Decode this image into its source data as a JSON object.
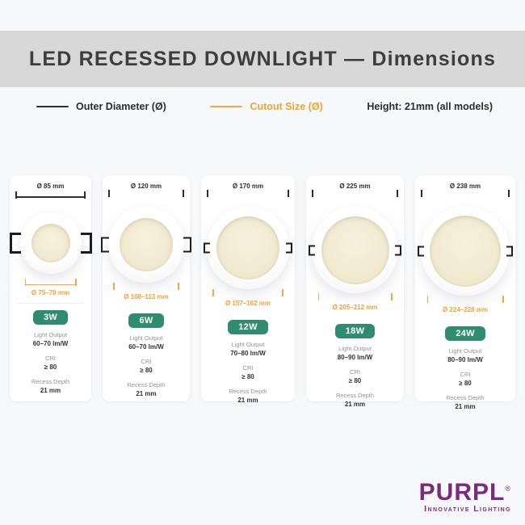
{
  "header": {
    "title": "LED RECESSED DOWNLIGHT — Dimensions"
  },
  "legend": {
    "outer_label": "Outer Diameter (Ø)",
    "cutout_label": "Cutout Size (Ø)",
    "height_note": "Height: 21mm (all models)"
  },
  "labels": {
    "light_output": "Light Output",
    "cri": "CRI",
    "recess_depth": "Recess Depth"
  },
  "products": [
    {
      "outer_diameter": "Ø 85 mm",
      "cutout": "Ø 75–78 mm",
      "wattage": "3W",
      "light_output": "60–70 lm/W",
      "cri": "≥ 80",
      "recess_depth": "21 mm"
    },
    {
      "outer_diameter": "Ø 120 mm",
      "cutout": "Ø 108–113 mm",
      "wattage": "6W",
      "light_output": "60–70 lm/W",
      "cri": "≥ 80",
      "recess_depth": "21 mm"
    },
    {
      "outer_diameter": "Ø 170 mm",
      "cutout": "Ø 157–162 mm",
      "wattage": "12W",
      "light_output": "70–80 lm/W",
      "cri": "≥ 80",
      "recess_depth": "21 mm"
    },
    {
      "outer_diameter": "Ø 225 mm",
      "cutout": "Ø 205–212 mm",
      "wattage": "18W",
      "light_output": "80–90 lm/W",
      "cri": "≥ 80",
      "recess_depth": "21 mm"
    },
    {
      "outer_diameter": "Ø 238 mm",
      "cutout": "Ø 224–228 mm",
      "wattage": "24W",
      "light_output": "80–90 lm/W",
      "cri": "≥ 80",
      "recess_depth": "21 mm"
    }
  ],
  "brand": {
    "name": "PURPL",
    "registered": "®",
    "tagline": "Innovative Lighting"
  },
  "colors": {
    "accent_orange": "#f2a83a",
    "badge_green": "#2f8c6e",
    "brand_purple": "#7b2b7f",
    "header_band_gray": "#d8d8d8"
  }
}
